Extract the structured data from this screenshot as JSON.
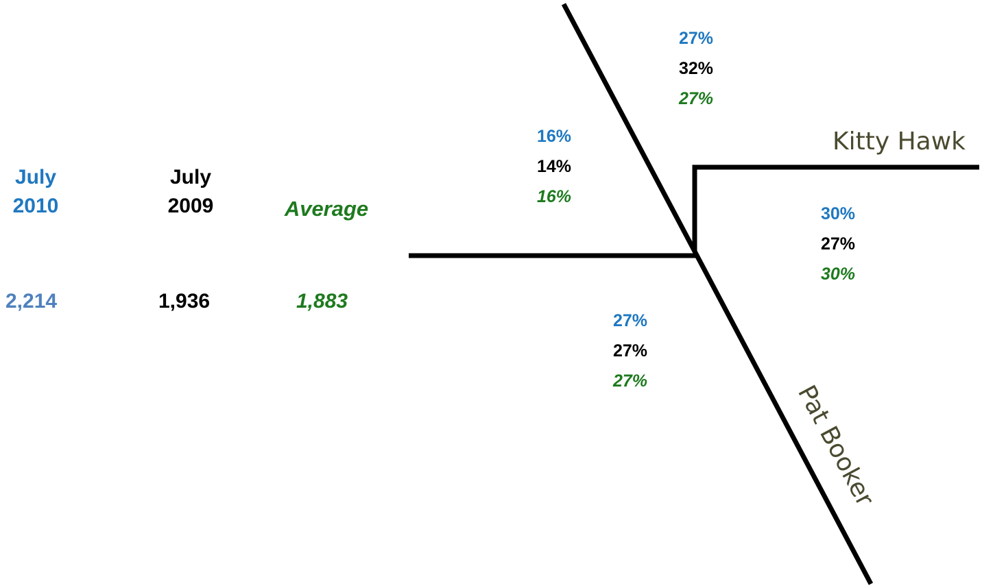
{
  "colors": {
    "july_2010": "#1F78C0",
    "july_2010_total": "#4F81BD",
    "july_2009": "#000000",
    "average": "#1E7A1E",
    "street_label": "#4A4A30",
    "road_line": "#000000"
  },
  "legend": {
    "july_2010": {
      "line1": "July",
      "line2": "2010"
    },
    "july_2009": {
      "line1": "July",
      "line2": "2009"
    },
    "average": {
      "label": "Average"
    }
  },
  "totals": {
    "july_2010": "2,214",
    "july_2009": "1,936",
    "average": "1,883"
  },
  "streets": {
    "kitty_hawk": "Kitty Hawk",
    "pat_booker": "Pat Booker"
  },
  "approaches": {
    "north": {
      "july_2010": "27%",
      "july_2009": "32%",
      "average": "27%"
    },
    "west": {
      "july_2010": "16%",
      "july_2009": "14%",
      "average": "16%"
    },
    "east": {
      "july_2010": "30%",
      "july_2009": "27%",
      "average": "30%"
    },
    "south": {
      "july_2010": "27%",
      "july_2009": "27%",
      "average": "27%"
    }
  }
}
